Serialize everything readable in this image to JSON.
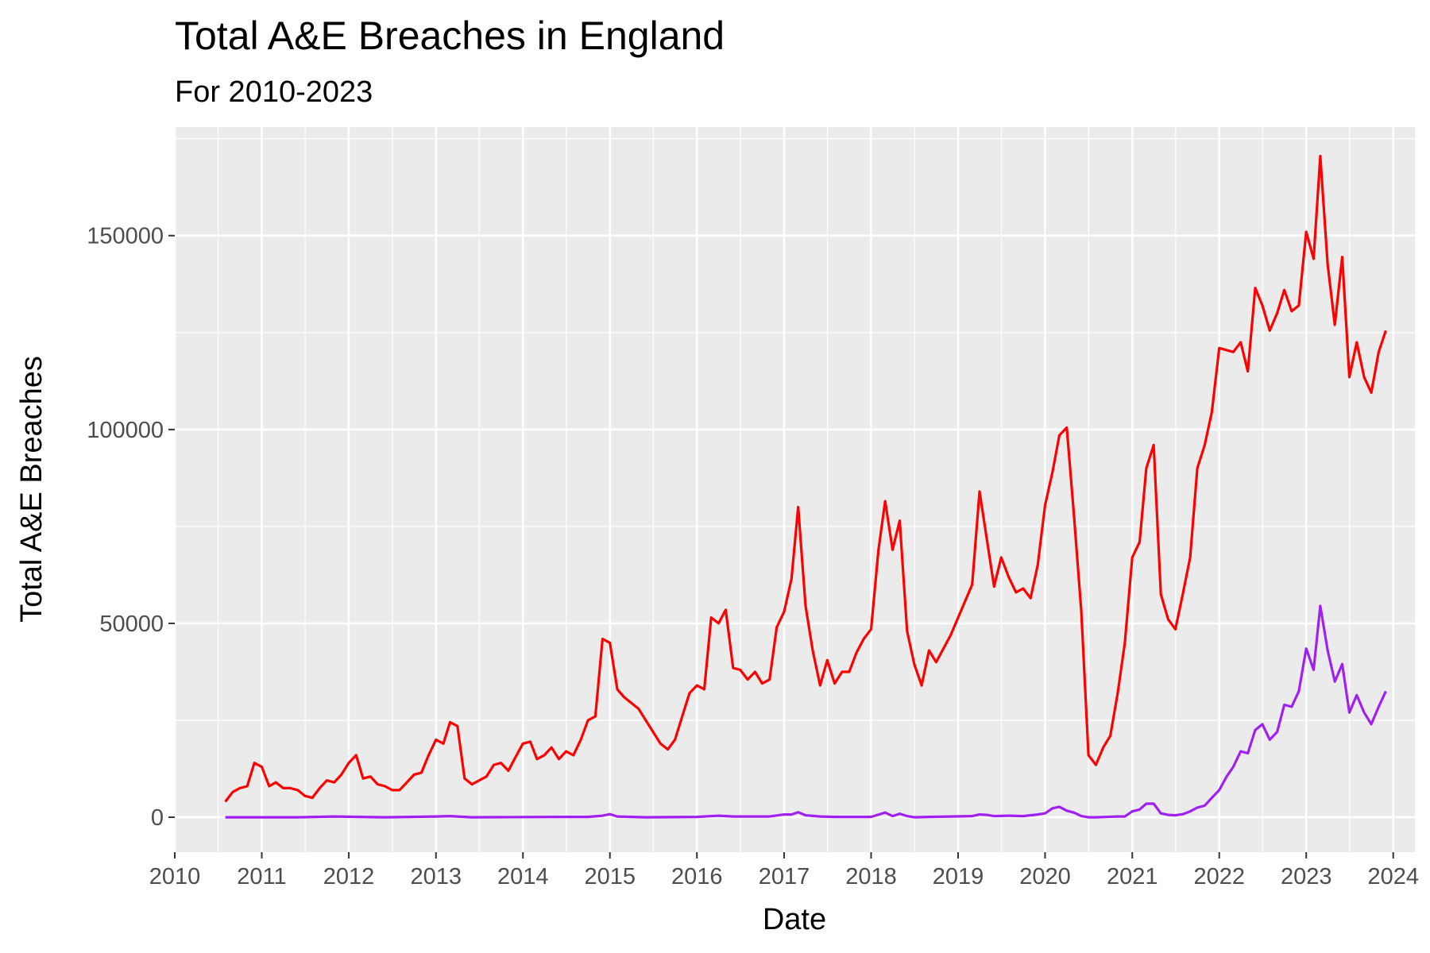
{
  "chart_data": {
    "type": "line",
    "title": "Total A&E Breaches in England",
    "subtitle": "For 2010-2023",
    "xlabel": "Date",
    "ylabel": "Total A&E Breaches",
    "x_ticks": [
      "2010",
      "2011",
      "2012",
      "2013",
      "2014",
      "2015",
      "2016",
      "2017",
      "2018",
      "2019",
      "2020",
      "2021",
      "2022",
      "2023",
      "2024"
    ],
    "y_ticks": [
      "0",
      "50000",
      "100000",
      "150000"
    ],
    "xlim": [
      "2010-01-01",
      "2024-04-01"
    ],
    "ylim": [
      -9000,
      178000
    ],
    "grid": true,
    "background_color": "#ebebeb",
    "series": [
      {
        "color": "#ff0000",
        "points": [
          [
            "2010-08-01",
            4000
          ],
          [
            "2010-09-01",
            6500
          ],
          [
            "2010-10-01",
            7500
          ],
          [
            "2010-11-01",
            8000
          ],
          [
            "2010-12-01",
            14000
          ],
          [
            "2011-01-01",
            13000
          ],
          [
            "2011-02-01",
            8000
          ],
          [
            "2011-03-01",
            9000
          ],
          [
            "2011-04-01",
            7500
          ],
          [
            "2011-05-01",
            7500
          ],
          [
            "2011-06-01",
            7000
          ],
          [
            "2011-07-01",
            5500
          ],
          [
            "2011-08-01",
            5000
          ],
          [
            "2011-09-01",
            7500
          ],
          [
            "2011-10-01",
            9500
          ],
          [
            "2011-11-01",
            9000
          ],
          [
            "2011-12-01",
            11000
          ],
          [
            "2012-01-01",
            14000
          ],
          [
            "2012-02-01",
            16000
          ],
          [
            "2012-03-01",
            10000
          ],
          [
            "2012-04-01",
            10500
          ],
          [
            "2012-05-01",
            8500
          ],
          [
            "2012-06-01",
            8000
          ],
          [
            "2012-07-01",
            7000
          ],
          [
            "2012-08-01",
            7000
          ],
          [
            "2012-09-01",
            9000
          ],
          [
            "2012-10-01",
            11000
          ],
          [
            "2012-11-01",
            11500
          ],
          [
            "2012-12-01",
            16000
          ],
          [
            "2013-01-01",
            20000
          ],
          [
            "2013-02-01",
            19000
          ],
          [
            "2013-03-01",
            24500
          ],
          [
            "2013-04-01",
            23500
          ],
          [
            "2013-05-01",
            10000
          ],
          [
            "2013-06-01",
            8500
          ],
          [
            "2013-07-01",
            9500
          ],
          [
            "2013-08-01",
            10500
          ],
          [
            "2013-09-01",
            13500
          ],
          [
            "2013-10-01",
            14000
          ],
          [
            "2013-11-01",
            12000
          ],
          [
            "2013-12-01",
            15500
          ],
          [
            "2014-01-01",
            19000
          ],
          [
            "2014-02-01",
            19500
          ],
          [
            "2014-03-01",
            15000
          ],
          [
            "2014-04-01",
            16000
          ],
          [
            "2014-05-01",
            18000
          ],
          [
            "2014-06-01",
            15000
          ],
          [
            "2014-07-01",
            17000
          ],
          [
            "2014-08-01",
            16000
          ],
          [
            "2014-09-01",
            20000
          ],
          [
            "2014-10-01",
            25000
          ],
          [
            "2014-11-01",
            26000
          ],
          [
            "2014-12-01",
            46000
          ],
          [
            "2015-01-01",
            45000
          ],
          [
            "2015-02-01",
            33000
          ],
          [
            "2015-03-01",
            31000
          ],
          [
            "2015-05-01",
            28000
          ],
          [
            "2015-08-01",
            19000
          ],
          [
            "2015-09-01",
            17500
          ],
          [
            "2015-10-01",
            20000
          ],
          [
            "2015-12-01",
            32000
          ],
          [
            "2016-01-01",
            34000
          ],
          [
            "2016-02-01",
            33000
          ],
          [
            "2016-03-01",
            51500
          ],
          [
            "2016-04-01",
            50000
          ],
          [
            "2016-05-01",
            53500
          ],
          [
            "2016-06-01",
            38500
          ],
          [
            "2016-07-01",
            38000
          ],
          [
            "2016-08-01",
            35500
          ],
          [
            "2016-09-01",
            37500
          ],
          [
            "2016-10-01",
            34500
          ],
          [
            "2016-11-01",
            35500
          ],
          [
            "2016-12-01",
            49000
          ],
          [
            "2017-01-01",
            53000
          ],
          [
            "2017-02-01",
            61500
          ],
          [
            "2017-03-01",
            80000
          ],
          [
            "2017-04-01",
            54500
          ],
          [
            "2017-05-01",
            43000
          ],
          [
            "2017-06-01",
            34000
          ],
          [
            "2017-07-01",
            40500
          ],
          [
            "2017-08-01",
            34500
          ],
          [
            "2017-09-01",
            37500
          ],
          [
            "2017-10-01",
            37500
          ],
          [
            "2017-11-01",
            42500
          ],
          [
            "2017-12-01",
            46000
          ],
          [
            "2018-01-01",
            48500
          ],
          [
            "2018-02-01",
            69000
          ],
          [
            "2018-03-01",
            81500
          ],
          [
            "2018-04-01",
            69000
          ],
          [
            "2018-05-01",
            76500
          ],
          [
            "2018-06-01",
            48000
          ],
          [
            "2018-07-01",
            39500
          ],
          [
            "2018-08-01",
            34000
          ],
          [
            "2018-09-01",
            43000
          ],
          [
            "2018-10-01",
            40000
          ],
          [
            "2018-12-01",
            47000
          ],
          [
            "2019-03-01",
            60000
          ],
          [
            "2019-04-01",
            84000
          ],
          [
            "2019-06-01",
            59500
          ],
          [
            "2019-07-01",
            67000
          ],
          [
            "2019-08-01",
            62000
          ],
          [
            "2019-09-01",
            58000
          ],
          [
            "2019-10-01",
            59000
          ],
          [
            "2019-11-01",
            56500
          ],
          [
            "2019-12-01",
            65000
          ],
          [
            "2020-01-01",
            80500
          ],
          [
            "2020-02-01",
            89000
          ],
          [
            "2020-03-01",
            98500
          ],
          [
            "2020-04-01",
            100500
          ],
          [
            "2020-05-01",
            78000
          ],
          [
            "2020-06-01",
            53000
          ],
          [
            "2020-07-01",
            16000
          ],
          [
            "2020-08-01",
            13500
          ],
          [
            "2020-09-01",
            18000
          ],
          [
            "2020-10-01",
            21000
          ],
          [
            "2020-11-01",
            32000
          ],
          [
            "2020-12-01",
            45000
          ],
          [
            "2021-01-01",
            67000
          ],
          [
            "2021-02-01",
            71000
          ],
          [
            "2021-03-01",
            90000
          ],
          [
            "2021-04-01",
            96000
          ],
          [
            "2021-05-01",
            57500
          ],
          [
            "2021-06-01",
            51000
          ],
          [
            "2021-07-01",
            48500
          ],
          [
            "2021-08-01",
            57500
          ],
          [
            "2021-09-01",
            67000
          ],
          [
            "2021-10-01",
            90000
          ],
          [
            "2021-11-01",
            96000
          ],
          [
            "2021-12-01",
            104500
          ],
          [
            "2022-01-01",
            121000
          ],
          [
            "2022-03-01",
            120000
          ],
          [
            "2022-04-01",
            122500
          ],
          [
            "2022-05-01",
            115000
          ],
          [
            "2022-06-01",
            136500
          ],
          [
            "2022-07-01",
            132000
          ],
          [
            "2022-08-01",
            125500
          ],
          [
            "2022-09-01",
            130000
          ],
          [
            "2022-10-01",
            136000
          ],
          [
            "2022-11-01",
            130500
          ],
          [
            "2022-12-01",
            132000
          ],
          [
            "2023-01-01",
            151000
          ],
          [
            "2023-02-01",
            144000
          ],
          [
            "2023-03-01",
            170500
          ],
          [
            "2023-04-01",
            142500
          ],
          [
            "2023-05-01",
            127000
          ],
          [
            "2023-06-01",
            144500
          ],
          [
            "2023-07-01",
            113500
          ],
          [
            "2023-08-01",
            122500
          ],
          [
            "2023-09-01",
            113500
          ],
          [
            "2023-10-01",
            109500
          ],
          [
            "2023-11-01",
            120000
          ],
          [
            "2023-12-01",
            125500
          ]
        ]
      },
      {
        "color": "#a020f0",
        "points": [
          [
            "2010-08-01",
            0
          ],
          [
            "2011-06-01",
            0
          ],
          [
            "2011-11-01",
            200
          ],
          [
            "2012-06-01",
            0
          ],
          [
            "2013-01-01",
            200
          ],
          [
            "2013-03-01",
            300
          ],
          [
            "2013-06-01",
            0
          ],
          [
            "2014-06-01",
            100
          ],
          [
            "2014-10-01",
            100
          ],
          [
            "2014-12-01",
            400
          ],
          [
            "2015-01-01",
            800
          ],
          [
            "2015-02-01",
            200
          ],
          [
            "2015-06-01",
            0
          ],
          [
            "2016-01-01",
            100
          ],
          [
            "2016-03-01",
            300
          ],
          [
            "2016-04-01",
            400
          ],
          [
            "2016-06-01",
            200
          ],
          [
            "2016-11-01",
            200
          ],
          [
            "2017-01-01",
            700
          ],
          [
            "2017-02-01",
            700
          ],
          [
            "2017-03-01",
            1300
          ],
          [
            "2017-04-01",
            500
          ],
          [
            "2017-06-01",
            200
          ],
          [
            "2017-08-01",
            100
          ],
          [
            "2018-01-01",
            100
          ],
          [
            "2018-03-01",
            1200
          ],
          [
            "2018-04-01",
            300
          ],
          [
            "2018-05-01",
            900
          ],
          [
            "2018-06-01",
            300
          ],
          [
            "2018-07-01",
            0
          ],
          [
            "2018-09-01",
            100
          ],
          [
            "2019-03-01",
            300
          ],
          [
            "2019-04-01",
            700
          ],
          [
            "2019-05-01",
            600
          ],
          [
            "2019-06-01",
            300
          ],
          [
            "2019-08-01",
            400
          ],
          [
            "2019-10-01",
            300
          ],
          [
            "2019-12-01",
            700
          ],
          [
            "2020-01-01",
            1000
          ],
          [
            "2020-02-01",
            2300
          ],
          [
            "2020-03-01",
            2700
          ],
          [
            "2020-04-01",
            1700
          ],
          [
            "2020-05-01",
            1200
          ],
          [
            "2020-06-01",
            300
          ],
          [
            "2020-07-01",
            0
          ],
          [
            "2020-08-01",
            0
          ],
          [
            "2020-11-01",
            200
          ],
          [
            "2020-12-01",
            200
          ],
          [
            "2021-01-01",
            1500
          ],
          [
            "2021-02-01",
            2000
          ],
          [
            "2021-03-01",
            3500
          ],
          [
            "2021-04-01",
            3500
          ],
          [
            "2021-05-01",
            1000
          ],
          [
            "2021-06-01",
            600
          ],
          [
            "2021-07-01",
            500
          ],
          [
            "2021-08-01",
            800
          ],
          [
            "2021-09-01",
            1500
          ],
          [
            "2021-10-01",
            2500
          ],
          [
            "2021-11-01",
            3000
          ],
          [
            "2021-12-01",
            5000
          ],
          [
            "2022-01-01",
            7000
          ],
          [
            "2022-02-01",
            10500
          ],
          [
            "2022-03-01",
            13000
          ],
          [
            "2022-04-01",
            17000
          ],
          [
            "2022-05-01",
            16500
          ],
          [
            "2022-06-01",
            22500
          ],
          [
            "2022-07-01",
            24000
          ],
          [
            "2022-08-01",
            20000
          ],
          [
            "2022-09-01",
            22000
          ],
          [
            "2022-10-01",
            29000
          ],
          [
            "2022-11-01",
            28500
          ],
          [
            "2022-12-01",
            32500
          ],
          [
            "2023-01-01",
            43500
          ],
          [
            "2023-02-01",
            38000
          ],
          [
            "2023-03-01",
            54500
          ],
          [
            "2023-04-01",
            43000
          ],
          [
            "2023-05-01",
            35000
          ],
          [
            "2023-06-01",
            39500
          ],
          [
            "2023-07-01",
            27000
          ],
          [
            "2023-08-01",
            31500
          ],
          [
            "2023-09-01",
            27000
          ],
          [
            "2023-10-01",
            24000
          ],
          [
            "2023-11-01",
            28500
          ],
          [
            "2023-12-01",
            32500
          ]
        ]
      }
    ]
  }
}
